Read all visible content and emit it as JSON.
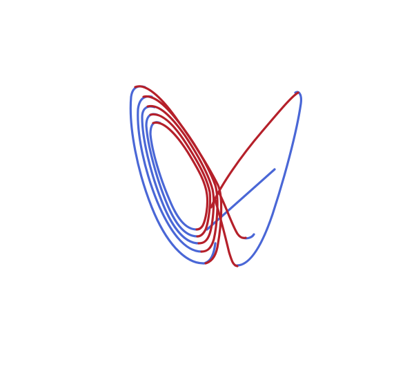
{
  "figure": {
    "background": "#ffffff",
    "colors": {
      "red_trajectory": "#b5202a",
      "blue_trajectory": "#4a67d6"
    }
  }
}
